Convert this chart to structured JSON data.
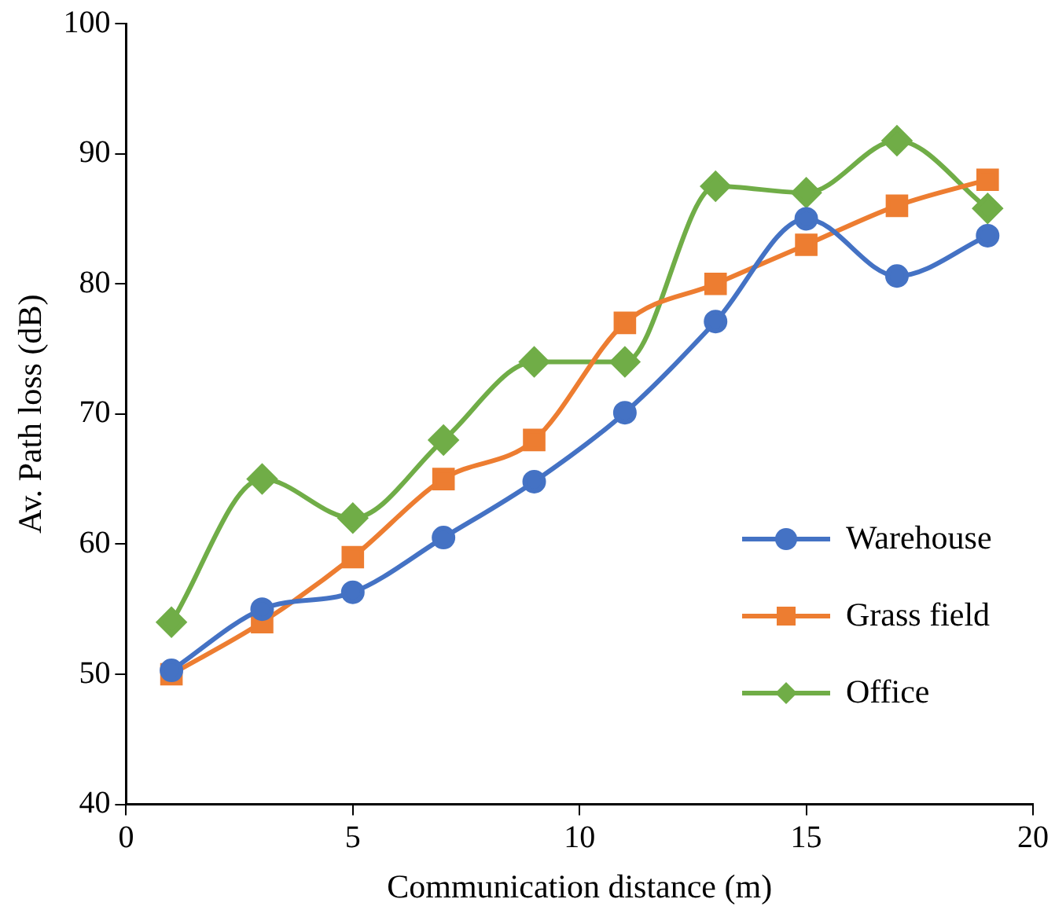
{
  "chart_data": {
    "type": "line",
    "xlabel": "Communication distance (m)",
    "ylabel": "Av. Path loss (dB)",
    "x": [
      1,
      3,
      5,
      7,
      9,
      11,
      13,
      15,
      17,
      19
    ],
    "xlim": [
      0,
      20
    ],
    "xticks": [
      0,
      5,
      10,
      15,
      20
    ],
    "ylim": [
      40,
      100
    ],
    "yticks": [
      40,
      50,
      60,
      70,
      80,
      90,
      100
    ],
    "grid": false,
    "legend": "right",
    "series": [
      {
        "name": "Warehouse",
        "color": "#4472c4",
        "marker": "circle",
        "values": [
          50.3,
          55,
          56.3,
          60.5,
          64.8,
          70.1,
          77.1,
          85,
          80.6,
          83.7
        ]
      },
      {
        "name": "Grass field",
        "color": "#ed7d31",
        "marker": "square",
        "values": [
          50,
          54,
          59,
          65,
          68,
          77,
          80,
          83,
          86,
          88
        ]
      },
      {
        "name": "Office",
        "color": "#70ad47",
        "marker": "diamond",
        "values": [
          54,
          65,
          62,
          68,
          74,
          74,
          87.5,
          87,
          91,
          85.8
        ]
      }
    ]
  }
}
